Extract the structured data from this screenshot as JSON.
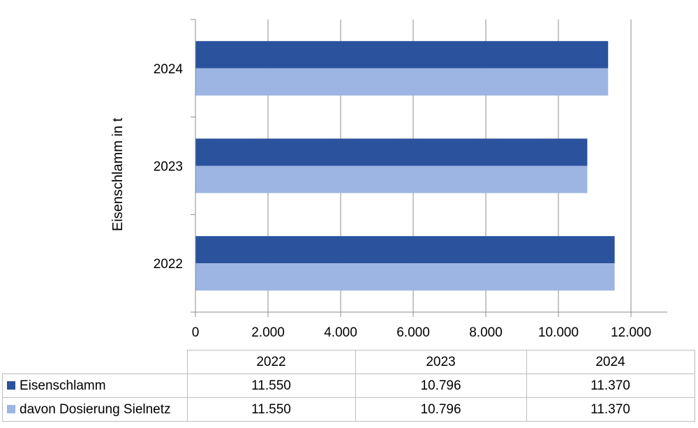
{
  "chart_data": {
    "type": "bar",
    "orientation": "horizontal",
    "categories": [
      "2022",
      "2023",
      "2024"
    ],
    "series": [
      {
        "name": "Eisenschlamm",
        "values": [
          11550,
          10796,
          11370
        ],
        "color": "#2a529d"
      },
      {
        "name": "davon Dosierung Sielnetz",
        "values": [
          11550,
          10796,
          11370
        ],
        "color": "#9db5e3"
      }
    ],
    "ylabel": "Eisenschlamm in t",
    "xlim": [
      0,
      13000
    ],
    "xticks": [
      0,
      2000,
      4000,
      6000,
      8000,
      10000,
      12000
    ],
    "xtick_labels": [
      "0",
      "2.000",
      "4.000",
      "6.000",
      "8.000",
      "10.000",
      "12.000"
    ],
    "grid": "vertical",
    "legend": "data-table-below"
  },
  "table": {
    "columns": [
      "2022",
      "2023",
      "2024"
    ],
    "rows": [
      {
        "label": "Eisenschlamm",
        "values": [
          "11.550",
          "10.796",
          "11.370"
        ]
      },
      {
        "label": "davon Dosierung Sielnetz",
        "values": [
          "11.550",
          "10.796",
          "11.370"
        ]
      }
    ]
  }
}
